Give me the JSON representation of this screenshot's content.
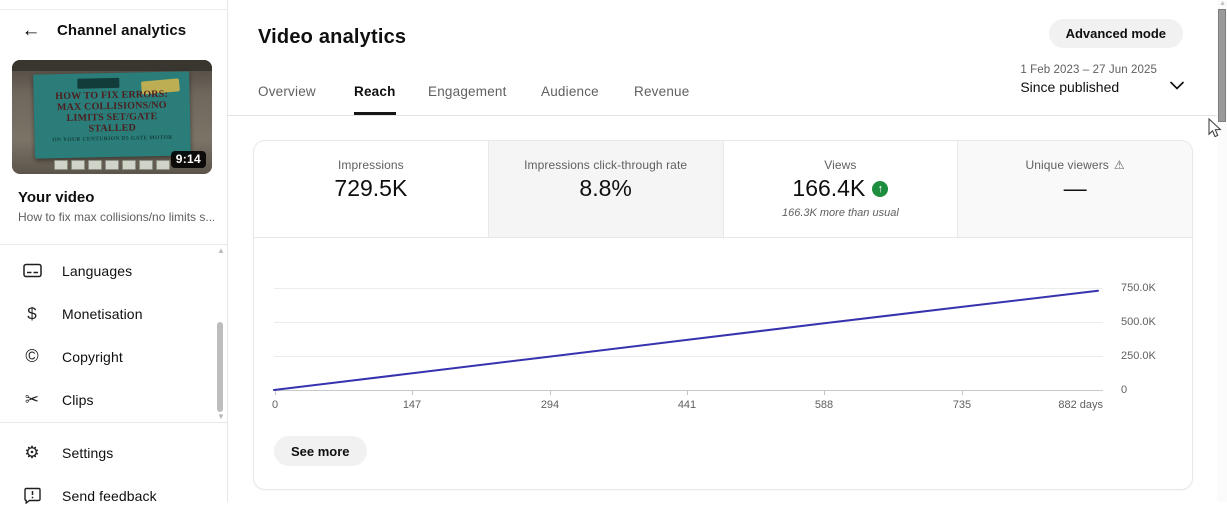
{
  "icons": {
    "back_arrow": "←",
    "dollar": "$",
    "copyright": "©",
    "scissors": "✂",
    "gear": "⚙",
    "warning": "⚠",
    "trend_up": "↑",
    "scroll_up": "▲",
    "scroll_down": "▼"
  },
  "sidebar": {
    "header": {
      "title": "Channel analytics"
    },
    "video": {
      "thumbnail": {
        "lines": [
          "HOW TO FIX ERRORS:",
          "MAX COLLISIONS/NO",
          "LIMITS SET/GATE",
          "STALLED"
        ],
        "subline": "ON YOUR CENTURION D5 GATE MOTOR",
        "duration": "9:14"
      },
      "label": "Your video",
      "title_truncated": "How to fix max collisions/no limits s..."
    },
    "menu": [
      {
        "label": "Languages",
        "icon": "subtitles-icon"
      },
      {
        "label": "Monetisation",
        "icon": "dollar-icon"
      },
      {
        "label": "Copyright",
        "icon": "copyright-icon"
      },
      {
        "label": "Clips",
        "icon": "scissors-icon"
      }
    ],
    "footer_menu": [
      {
        "label": "Settings",
        "icon": "gear-icon"
      },
      {
        "label": "Send feedback",
        "icon": "feedback-icon"
      }
    ]
  },
  "header": {
    "page_title": "Video analytics",
    "advanced_mode_label": "Advanced mode",
    "date_range": "1 Feb 2023 – 27 Jun 2025",
    "date_mode": "Since published"
  },
  "tabs": [
    {
      "label": "Overview",
      "active": false
    },
    {
      "label": "Reach",
      "active": true
    },
    {
      "label": "Engagement",
      "active": false
    },
    {
      "label": "Audience",
      "active": false
    },
    {
      "label": "Revenue",
      "active": false
    }
  ],
  "metrics": [
    {
      "label": "Impressions",
      "value": "729.5K"
    },
    {
      "label": "Impressions click-through rate",
      "value": "8.8%",
      "highlighted": true
    },
    {
      "label": "Views",
      "value": "166.4K",
      "trend": "up",
      "note": "166.3K more than usual"
    },
    {
      "label": "Unique viewers",
      "value": "—",
      "warning": true
    }
  ],
  "see_more_label": "See more",
  "chart_data": {
    "type": "line",
    "x_days": [
      0,
      147,
      294,
      441,
      588,
      735,
      882
    ],
    "series": [
      {
        "name": "Impressions",
        "values": [
          0,
          122000,
          245000,
          368000,
          490000,
          610000,
          729500
        ]
      }
    ],
    "ylim": [
      0,
      750000
    ],
    "ytick_labels": [
      "750.0K",
      "500.0K",
      "250.0K",
      "0"
    ],
    "xtick_labels": [
      "0",
      "147",
      "294",
      "441",
      "588",
      "735",
      "882 days"
    ],
    "xlabel_unit": "days",
    "line_color": "#3733ae",
    "grid": "horizontal",
    "legend": "none"
  },
  "colors": {
    "accent_line": "#3733ae",
    "positive_green": "#1e8e3e",
    "text_primary": "#0f0f0f",
    "text_secondary": "#606060",
    "divider": "#e8e8e8",
    "pill_bg": "#f1f1f1"
  }
}
